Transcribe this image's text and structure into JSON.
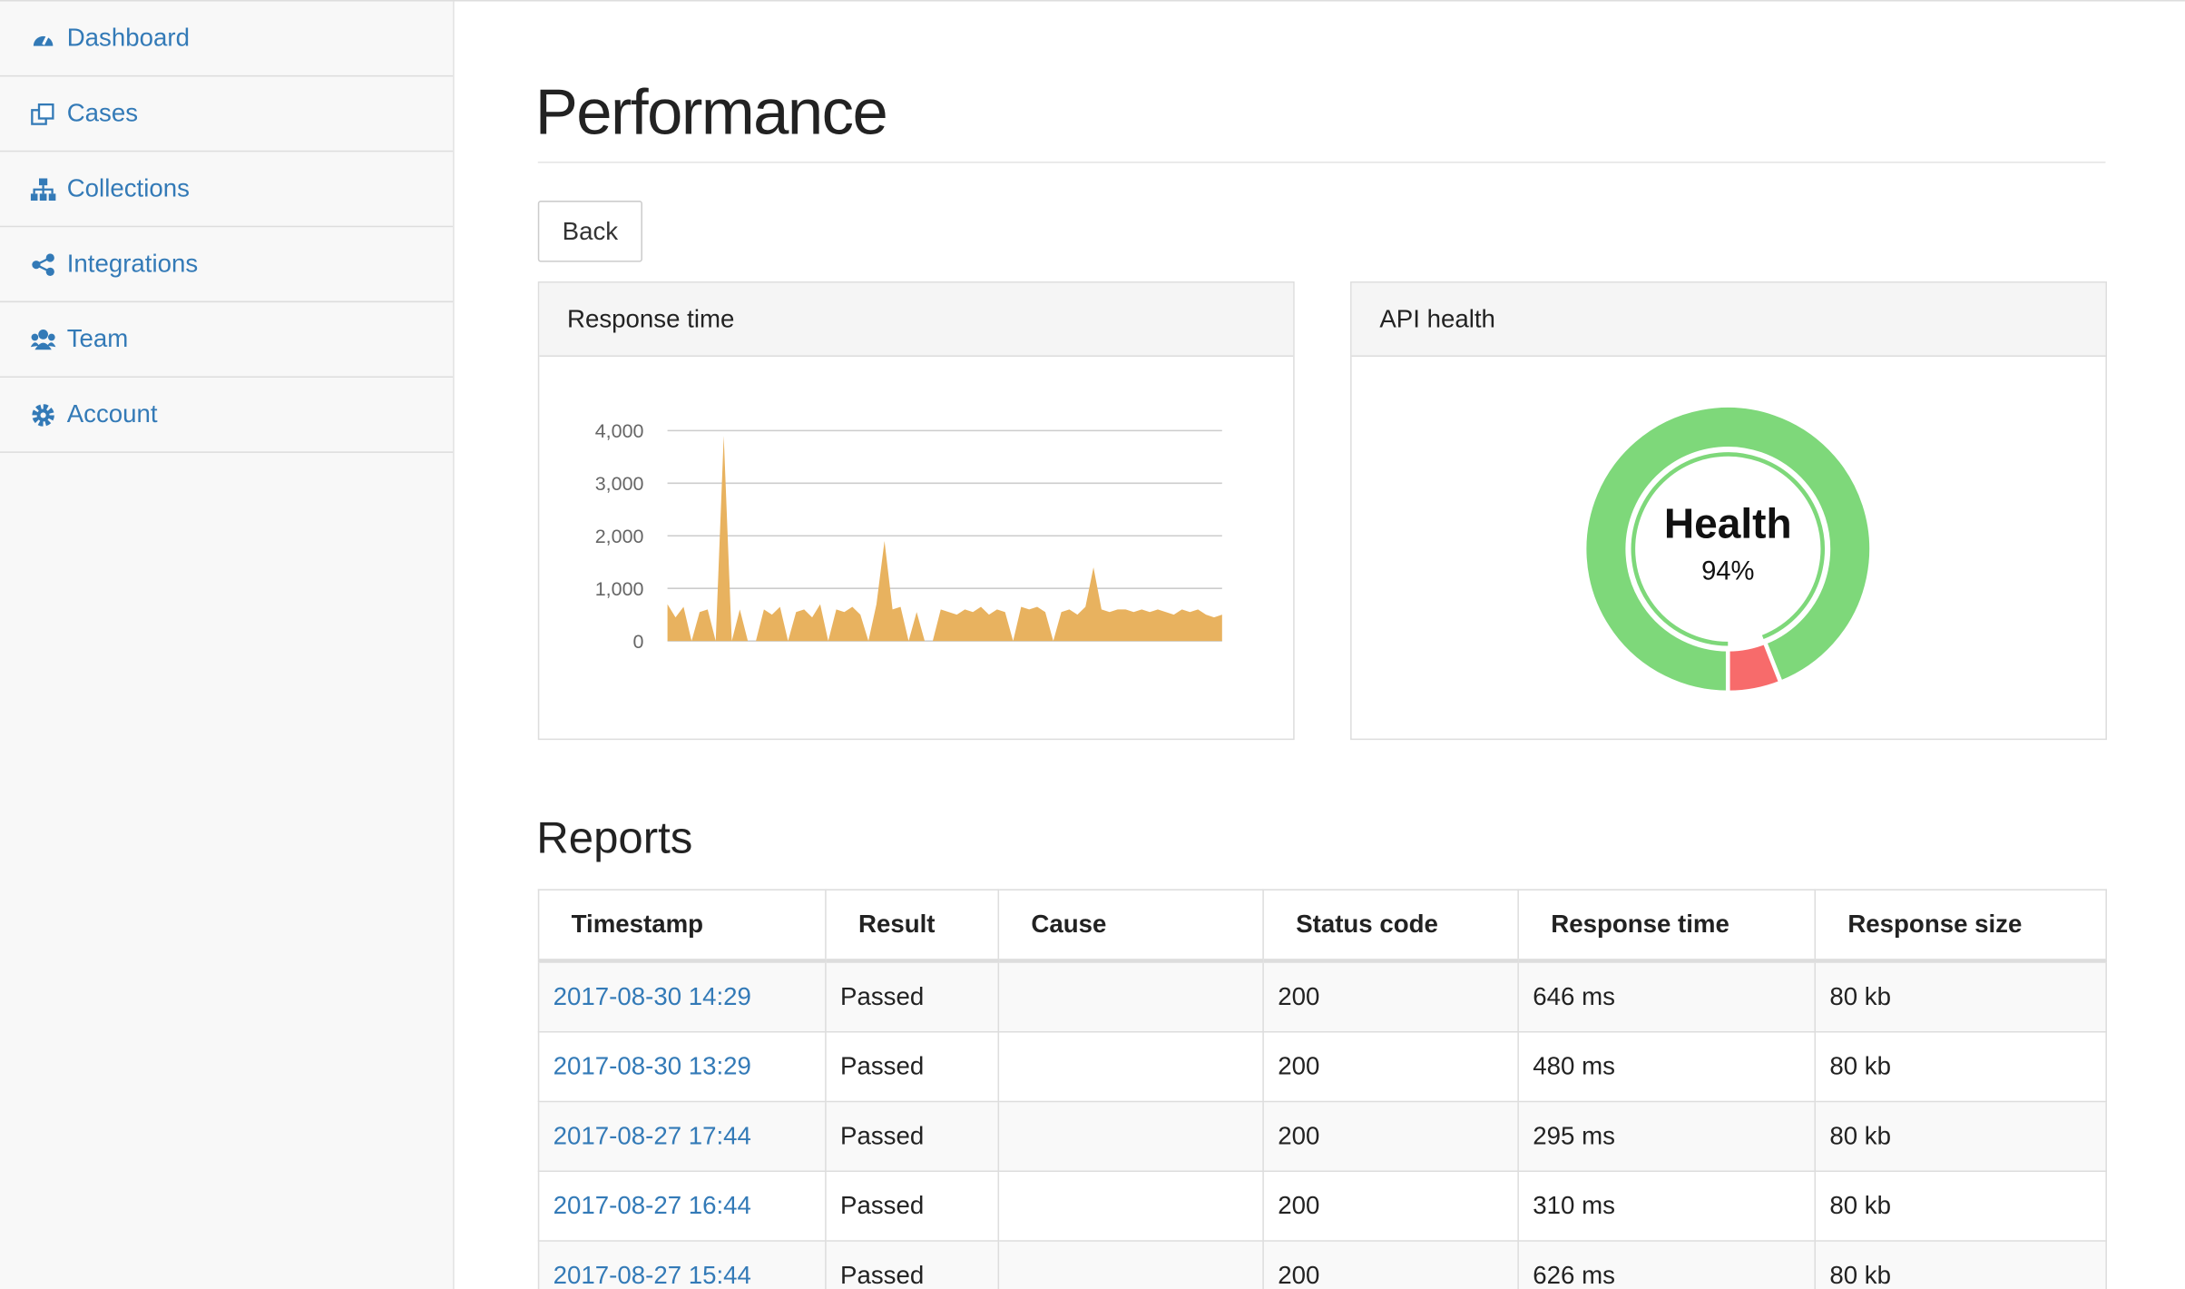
{
  "nav": {
    "items": [
      "Dashboard",
      "Cases",
      "Collections",
      "Integrations",
      "Team",
      "Account"
    ]
  },
  "header": {
    "title": "Performance",
    "back": "Back"
  },
  "chart_data": [
    {
      "type": "area",
      "title": "Response time",
      "color": "#e8b25f",
      "grid": true,
      "ylim": [
        0,
        4000
      ],
      "yticks": [
        0,
        {
          "value": 1000,
          "label": "1,000"
        },
        {
          "value": 2000,
          "label": "2,000"
        },
        {
          "value": 3000,
          "label": "3,000"
        },
        {
          "value": 4000,
          "label": "4,000"
        }
      ],
      "values": [
        700,
        450,
        650,
        0,
        550,
        600,
        0,
        3900,
        0,
        600,
        0,
        0,
        600,
        500,
        650,
        0,
        550,
        600,
        450,
        700,
        0,
        600,
        550,
        650,
        500,
        0,
        700,
        1900,
        600,
        650,
        0,
        550,
        0,
        0,
        600,
        550,
        500,
        600,
        550,
        650,
        500,
        600,
        550,
        0,
        650,
        600,
        650,
        550,
        0,
        550,
        600,
        500,
        650,
        1400,
        600,
        550,
        600,
        600,
        550,
        600,
        550,
        600,
        550,
        500,
        600,
        550,
        600,
        500,
        450,
        500
      ]
    },
    {
      "type": "donut",
      "title": "API health",
      "center_label": "Health",
      "values": [
        94,
        6
      ],
      "value_labels": [
        "94%",
        null
      ],
      "colors": [
        "#7ed87a",
        "#f76b6b"
      ]
    }
  ],
  "reports": {
    "title": "Reports",
    "table": {
      "headers": [
        "Timestamp",
        "Result",
        "Cause",
        "Status code",
        "Response time",
        "Response size"
      ],
      "rows": [
        [
          "2017-08-30 14:29",
          "Passed",
          "",
          "200",
          "646 ms",
          "80 kb"
        ],
        [
          "2017-08-30 13:29",
          "Passed",
          "",
          "200",
          "480 ms",
          "80 kb"
        ],
        [
          "2017-08-27 17:44",
          "Passed",
          "",
          "200",
          "295 ms",
          "80 kb"
        ],
        [
          "2017-08-27 16:44",
          "Passed",
          "",
          "200",
          "310 ms",
          "80 kb"
        ],
        [
          "2017-08-27 15:44",
          "Passed",
          "",
          "200",
          "626 ms",
          "80 kb"
        ]
      ]
    }
  }
}
